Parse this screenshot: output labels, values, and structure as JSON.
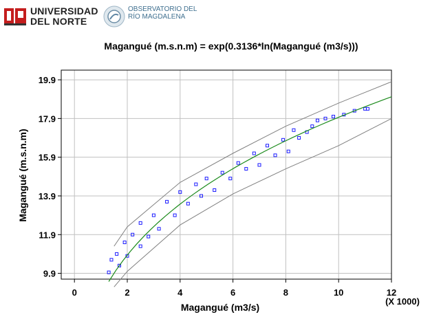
{
  "logos": {
    "university_name_line1": "UNIVERSIDAD",
    "university_name_line2": "DEL NORTE",
    "observatory_line1": "OBSERVATORIO DEL",
    "observatory_line2": "RÍO MAGDALENA"
  },
  "chart_data": {
    "type": "scatter",
    "title": "Magangué (m.s.n.m) = exp(0.3136*ln(Magangué   (m3/s)))",
    "xlabel": "Magangué  (m3/s)",
    "ylabel": "Magangué  (m.s.n.m)",
    "x_multiplier_label": "(X 1000)",
    "xlim": [
      -0.5,
      12
    ],
    "ylim": [
      9.6,
      20.4
    ],
    "x_ticks": [
      "0",
      "2",
      "4",
      "6",
      "8",
      "10",
      "12"
    ],
    "y_ticks": [
      "9.9",
      "11.9",
      "13.9",
      "15.9",
      "17.9",
      "19.9"
    ],
    "x_tick_values": [
      0,
      2,
      4,
      6,
      8,
      10,
      12
    ],
    "y_tick_values": [
      9.9,
      11.9,
      13.9,
      15.9,
      17.9,
      19.9
    ],
    "grid": true,
    "colors": {
      "points": "#1a1aff",
      "fit": "#1a8a1a",
      "bands": "#808080"
    },
    "fit": {
      "coefficient": 0.3136,
      "range": [
        1.3,
        12
      ]
    },
    "bands": [
      {
        "name": "upper",
        "points": [
          [
            1.5,
            11.3
          ],
          [
            2,
            12.3
          ],
          [
            4,
            14.6
          ],
          [
            6,
            16.1
          ],
          [
            8,
            17.5
          ],
          [
            10,
            18.7
          ],
          [
            12,
            19.8
          ]
        ]
      },
      {
        "name": "lower",
        "points": [
          [
            1.5,
            9.2
          ],
          [
            2,
            10.0
          ],
          [
            4,
            12.4
          ],
          [
            6,
            14.0
          ],
          [
            8,
            15.3
          ],
          [
            10,
            16.5
          ],
          [
            12,
            17.9
          ]
        ]
      }
    ],
    "series": [
      {
        "type": "cloud",
        "points": [
          [
            1.3,
            9.95
          ],
          [
            1.4,
            10.6
          ],
          [
            1.6,
            10.9
          ],
          [
            1.7,
            10.3
          ],
          [
            1.9,
            11.5
          ],
          [
            2.0,
            10.8
          ],
          [
            2.2,
            11.9
          ],
          [
            2.5,
            11.3
          ],
          [
            2.5,
            12.5
          ],
          [
            2.8,
            11.8
          ],
          [
            3.0,
            12.9
          ],
          [
            3.2,
            12.2
          ],
          [
            3.5,
            13.6
          ],
          [
            3.8,
            12.9
          ],
          [
            4.0,
            14.1
          ],
          [
            4.3,
            13.5
          ],
          [
            4.6,
            14.5
          ],
          [
            4.8,
            13.9
          ],
          [
            5.0,
            14.8
          ],
          [
            5.3,
            14.2
          ],
          [
            5.6,
            15.1
          ],
          [
            5.9,
            14.8
          ],
          [
            6.2,
            15.6
          ],
          [
            6.5,
            15.3
          ],
          [
            6.8,
            16.1
          ],
          [
            7.0,
            15.5
          ],
          [
            7.3,
            16.5
          ],
          [
            7.6,
            16.0
          ],
          [
            7.9,
            16.8
          ],
          [
            8.1,
            16.2
          ],
          [
            8.3,
            17.3
          ],
          [
            8.5,
            16.9
          ],
          [
            8.8,
            17.2
          ],
          [
            9.0,
            17.5
          ],
          [
            9.2,
            17.8
          ],
          [
            9.5,
            17.9
          ],
          [
            9.8,
            18.0
          ],
          [
            10.2,
            18.1
          ],
          [
            10.6,
            18.3
          ],
          [
            11.0,
            18.4
          ],
          [
            11.1,
            18.4
          ]
        ]
      }
    ]
  }
}
